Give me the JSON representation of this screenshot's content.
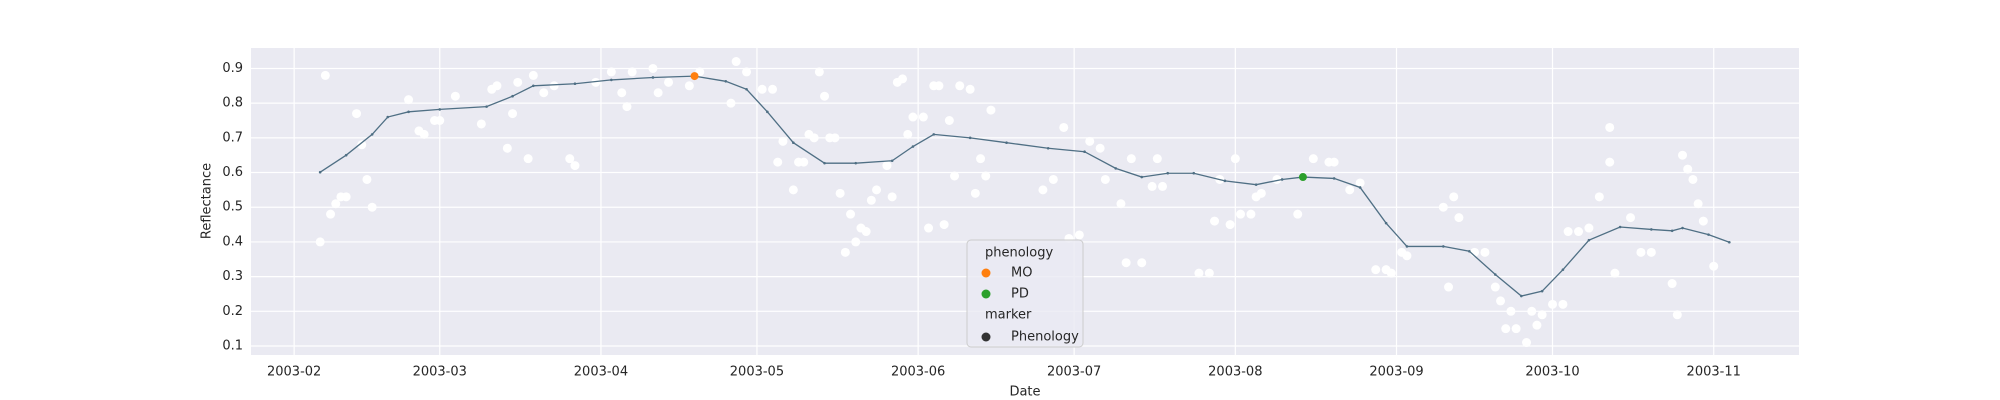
{
  "chart_data": {
    "type": "scatter",
    "x_label": "Date",
    "y_label": "Reflectance",
    "xlim": [
      23.7,
      321.4
    ],
    "ylim": [
      0.074,
      0.959
    ],
    "xticks": [
      {
        "value": 32,
        "label": "2003-02"
      },
      {
        "value": 60,
        "label": "2003-03"
      },
      {
        "value": 91,
        "label": "2003-04"
      },
      {
        "value": 121,
        "label": "2003-05"
      },
      {
        "value": 152,
        "label": "2003-06"
      },
      {
        "value": 182,
        "label": "2003-07"
      },
      {
        "value": 213,
        "label": "2003-08"
      },
      {
        "value": 244,
        "label": "2003-09"
      },
      {
        "value": 274,
        "label": "2003-10"
      },
      {
        "value": 305,
        "label": "2003-11"
      }
    ],
    "yticks": [
      0.1,
      0.2,
      0.3,
      0.4,
      0.5,
      0.6,
      0.7,
      0.8,
      0.9
    ],
    "grid": true,
    "observations": {
      "color": "#ffffff",
      "x": [
        37,
        38,
        39,
        40,
        41,
        42,
        44,
        45,
        46,
        47,
        54,
        56,
        57,
        59,
        60,
        63,
        68,
        70,
        71,
        73,
        74,
        75,
        77,
        78,
        80,
        82,
        85,
        86,
        90,
        93,
        95,
        96,
        97,
        101,
        102,
        104,
        108,
        110,
        116,
        117,
        119,
        122,
        124,
        125,
        126,
        128,
        129,
        130,
        131,
        132,
        133,
        134,
        135,
        136,
        137,
        138,
        139,
        140,
        141,
        142,
        143,
        144,
        146,
        147,
        148,
        149,
        150,
        151,
        153,
        154,
        155,
        156,
        157,
        158,
        159,
        160,
        162,
        163,
        164,
        165,
        166,
        176,
        178,
        180,
        181,
        183,
        185,
        187,
        188,
        191,
        192,
        193,
        195,
        197,
        198,
        199,
        206,
        208,
        209,
        210,
        212,
        213,
        214,
        216,
        217,
        218,
        221,
        225,
        228,
        231,
        232,
        235,
        237,
        240,
        242,
        243,
        245,
        246,
        253,
        254,
        255,
        256,
        259,
        261,
        263,
        264,
        265,
        266,
        267,
        269,
        270,
        271,
        272,
        274,
        276,
        277,
        279,
        281,
        283,
        285,
        285,
        286,
        289,
        291,
        293,
        297,
        298,
        299,
        300,
        301,
        302,
        303,
        305
      ],
      "values": [
        0.4,
        0.88,
        0.48,
        0.51,
        0.53,
        0.53,
        0.77,
        0.68,
        0.58,
        0.5,
        0.81,
        0.72,
        0.71,
        0.75,
        0.75,
        0.82,
        0.74,
        0.84,
        0.85,
        0.67,
        0.77,
        0.86,
        0.64,
        0.88,
        0.83,
        0.85,
        0.64,
        0.62,
        0.86,
        0.89,
        0.83,
        0.79,
        0.89,
        0.9,
        0.83,
        0.86,
        0.85,
        0.89,
        0.8,
        0.92,
        0.89,
        0.84,
        0.84,
        0.63,
        0.69,
        0.55,
        0.63,
        0.63,
        0.71,
        0.7,
        0.89,
        0.82,
        0.7,
        0.7,
        0.54,
        0.37,
        0.48,
        0.4,
        0.44,
        0.43,
        0.52,
        0.55,
        0.62,
        0.53,
        0.86,
        0.87,
        0.71,
        0.76,
        0.76,
        0.44,
        0.85,
        0.85,
        0.45,
        0.75,
        0.59,
        0.85,
        0.84,
        0.54,
        0.64,
        0.59,
        0.78,
        0.55,
        0.58,
        0.73,
        0.41,
        0.42,
        0.69,
        0.67,
        0.58,
        0.51,
        0.34,
        0.64,
        0.34,
        0.56,
        0.64,
        0.56,
        0.31,
        0.31,
        0.46,
        0.58,
        0.45,
        0.64,
        0.48,
        0.48,
        0.53,
        0.54,
        0.58,
        0.48,
        0.64,
        0.63,
        0.63,
        0.55,
        0.57,
        0.32,
        0.32,
        0.31,
        0.37,
        0.36,
        0.5,
        0.27,
        0.53,
        0.47,
        0.37,
        0.37,
        0.27,
        0.23,
        0.15,
        0.2,
        0.15,
        0.11,
        0.2,
        0.16,
        0.19,
        0.22,
        0.22,
        0.43,
        0.43,
        0.44,
        0.53,
        0.63,
        0.73,
        0.31,
        0.47,
        0.37,
        0.37,
        0.28,
        0.19,
        0.65,
        0.61,
        0.58,
        0.51,
        0.46,
        0.33
      ]
    },
    "smoothed": {
      "color": "#4f6f84",
      "x": [
        37,
        42,
        47,
        50,
        54,
        60,
        69,
        74,
        78,
        86,
        93,
        101,
        109,
        115,
        119,
        123,
        128,
        134,
        140,
        147,
        151,
        155,
        162,
        169,
        177,
        184,
        190,
        195,
        200,
        205,
        211,
        217,
        222,
        226,
        232,
        237,
        242,
        246,
        253,
        258,
        263,
        268,
        272,
        276,
        281,
        287,
        293,
        297,
        299,
        304,
        308
      ],
      "values": [
        0.601,
        0.65,
        0.71,
        0.76,
        0.775,
        0.782,
        0.79,
        0.82,
        0.85,
        0.856,
        0.867,
        0.874,
        0.878,
        0.863,
        0.84,
        0.775,
        0.686,
        0.627,
        0.627,
        0.634,
        0.675,
        0.71,
        0.7,
        0.686,
        0.67,
        0.66,
        0.612,
        0.587,
        0.598,
        0.598,
        0.576,
        0.565,
        0.58,
        0.587,
        0.583,
        0.557,
        0.454,
        0.387,
        0.387,
        0.373,
        0.306,
        0.244,
        0.258,
        0.32,
        0.405,
        0.443,
        0.436,
        0.432,
        0.44,
        0.421,
        0.399
      ]
    },
    "phenology": {
      "title": "phenology",
      "series": [
        {
          "name": "MO",
          "color": "#ff7f0e",
          "x": [
            109
          ],
          "values": [
            0.878
          ]
        },
        {
          "name": "PD",
          "color": "#2ca02c",
          "x": [
            226
          ],
          "values": [
            0.587
          ]
        }
      ]
    },
    "marker": {
      "title": "marker",
      "name": "Phenology",
      "color": "#333333"
    }
  }
}
